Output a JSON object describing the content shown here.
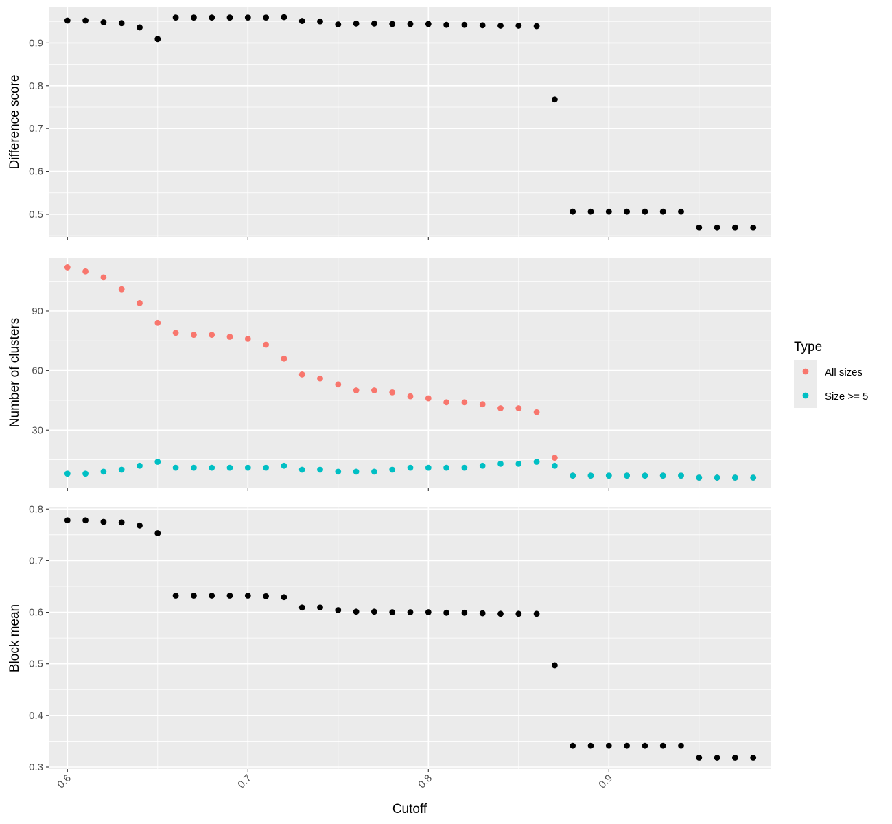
{
  "chart_data": [
    {
      "type": "scatter",
      "panel": "top",
      "title": "",
      "xlabel": "",
      "ylabel": "Difference score",
      "xlim": [
        0.59,
        0.99
      ],
      "ylim": [
        0.447,
        0.984
      ],
      "yticks": [
        0.5,
        0.6,
        0.7,
        0.8,
        0.9
      ],
      "ytick_labels": [
        "0.5",
        "0.6",
        "0.7",
        "0.8",
        "0.9"
      ],
      "grid": true,
      "color": "#000000",
      "x": [
        0.6,
        0.61,
        0.62,
        0.63,
        0.64,
        0.65,
        0.66,
        0.67,
        0.68,
        0.69,
        0.7,
        0.71,
        0.72,
        0.73,
        0.74,
        0.75,
        0.76,
        0.77,
        0.78,
        0.79,
        0.8,
        0.81,
        0.82,
        0.83,
        0.84,
        0.85,
        0.86,
        0.87,
        0.88,
        0.89,
        0.9,
        0.91,
        0.92,
        0.93,
        0.94,
        0.95,
        0.96,
        0.97,
        0.98
      ],
      "y": [
        0.952,
        0.952,
        0.948,
        0.946,
        0.936,
        0.909,
        0.959,
        0.959,
        0.959,
        0.959,
        0.959,
        0.959,
        0.96,
        0.951,
        0.95,
        0.943,
        0.945,
        0.945,
        0.944,
        0.944,
        0.944,
        0.942,
        0.942,
        0.941,
        0.94,
        0.94,
        0.939,
        0.768,
        0.506,
        0.506,
        0.506,
        0.506,
        0.506,
        0.506,
        0.506,
        0.469,
        0.469,
        0.469,
        0.469
      ]
    },
    {
      "type": "scatter",
      "panel": "middle",
      "title": "",
      "xlabel": "",
      "ylabel": "Number of clusters",
      "xlim": [
        0.59,
        0.99
      ],
      "ylim": [
        1,
        117
      ],
      "yticks": [
        30,
        60,
        90
      ],
      "ytick_labels": [
        "30",
        "60",
        "90"
      ],
      "grid": true,
      "legend": {
        "title": "Type",
        "position": "right"
      },
      "series": [
        {
          "name": "All sizes",
          "color": "#F8766D",
          "x": [
            0.6,
            0.61,
            0.62,
            0.63,
            0.64,
            0.65,
            0.66,
            0.67,
            0.68,
            0.69,
            0.7,
            0.71,
            0.72,
            0.73,
            0.74,
            0.75,
            0.76,
            0.77,
            0.78,
            0.79,
            0.8,
            0.81,
            0.82,
            0.83,
            0.84,
            0.85,
            0.86,
            0.87,
            0.88,
            0.89,
            0.9,
            0.91,
            0.92,
            0.93,
            0.94,
            0.95,
            0.96,
            0.97,
            0.98
          ],
          "values": [
            112,
            110,
            107,
            101,
            94,
            84,
            79,
            78,
            78,
            77,
            76,
            73,
            66,
            58,
            56,
            53,
            50,
            50,
            49,
            47,
            46,
            44,
            44,
            43,
            41,
            41,
            39,
            16,
            7,
            7,
            7,
            7,
            7,
            7,
            7,
            6,
            6,
            6,
            6
          ]
        },
        {
          "name": "Size >= 5",
          "color": "#00BFC4",
          "x": [
            0.6,
            0.61,
            0.62,
            0.63,
            0.64,
            0.65,
            0.66,
            0.67,
            0.68,
            0.69,
            0.7,
            0.71,
            0.72,
            0.73,
            0.74,
            0.75,
            0.76,
            0.77,
            0.78,
            0.79,
            0.8,
            0.81,
            0.82,
            0.83,
            0.84,
            0.85,
            0.86,
            0.87,
            0.88,
            0.89,
            0.9,
            0.91,
            0.92,
            0.93,
            0.94,
            0.95,
            0.96,
            0.97,
            0.98
          ],
          "values": [
            8,
            8,
            9,
            10,
            12,
            14,
            11,
            11,
            11,
            11,
            11,
            11,
            12,
            10,
            10,
            9,
            9,
            9,
            10,
            11,
            11,
            11,
            11,
            12,
            13,
            13,
            14,
            12,
            7,
            7,
            7,
            7,
            7,
            7,
            7,
            6,
            6,
            6,
            6
          ]
        }
      ]
    },
    {
      "type": "scatter",
      "panel": "bottom",
      "title": "",
      "xlabel": "Cutoff",
      "ylabel": "Block mean",
      "xlim": [
        0.59,
        0.99
      ],
      "ylim": [
        0.296,
        0.803
      ],
      "yticks": [
        0.3,
        0.4,
        0.5,
        0.6,
        0.7,
        0.8
      ],
      "ytick_labels": [
        "0.3",
        "0.4",
        "0.5",
        "0.6",
        "0.7",
        "0.8"
      ],
      "xticks": [
        0.6,
        0.7,
        0.8,
        0.9
      ],
      "xtick_labels": [
        "0.6",
        "0.7",
        "0.8",
        "0.9"
      ],
      "grid": true,
      "color": "#000000",
      "x": [
        0.6,
        0.61,
        0.62,
        0.63,
        0.64,
        0.65,
        0.66,
        0.67,
        0.68,
        0.69,
        0.7,
        0.71,
        0.72,
        0.73,
        0.74,
        0.75,
        0.76,
        0.77,
        0.78,
        0.79,
        0.8,
        0.81,
        0.82,
        0.83,
        0.84,
        0.85,
        0.86,
        0.87,
        0.88,
        0.89,
        0.9,
        0.91,
        0.92,
        0.93,
        0.94,
        0.95,
        0.96,
        0.97,
        0.98
      ],
      "y": [
        0.778,
        0.778,
        0.775,
        0.774,
        0.768,
        0.753,
        0.632,
        0.632,
        0.632,
        0.632,
        0.632,
        0.631,
        0.629,
        0.609,
        0.609,
        0.604,
        0.601,
        0.601,
        0.6,
        0.6,
        0.6,
        0.599,
        0.599,
        0.598,
        0.597,
        0.597,
        0.597,
        0.497,
        0.341,
        0.341,
        0.341,
        0.341,
        0.341,
        0.341,
        0.341,
        0.318,
        0.318,
        0.318,
        0.318
      ]
    }
  ]
}
